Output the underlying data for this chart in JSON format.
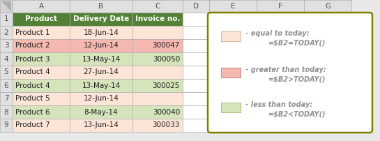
{
  "col_headers": [
    "A",
    "B",
    "C",
    "D",
    "E",
    "F",
    "G"
  ],
  "row_headers": [
    "1",
    "2",
    "3",
    "4",
    "5",
    "6",
    "7",
    "8",
    "9"
  ],
  "table_data": [
    [
      "Product",
      "Delivery Date",
      "Invoice no.",
      "",
      "",
      "",
      ""
    ],
    [
      "Product 1",
      "18-Jun-14",
      "",
      "",
      "",
      "",
      ""
    ],
    [
      "Product 2",
      "12-Jun-14",
      "300047",
      "",
      "",
      "",
      ""
    ],
    [
      "Product 3",
      "13-May-14",
      "300050",
      "",
      "",
      "",
      ""
    ],
    [
      "Product 4",
      "27-Jun-14",
      "",
      "",
      "",
      "",
      ""
    ],
    [
      "Product 4",
      "13-May-14",
      "300025",
      "",
      "",
      "",
      ""
    ],
    [
      "Product 5",
      "12-Jun-14",
      "",
      "",
      "",
      "",
      ""
    ],
    [
      "Product 6",
      "8-May-14",
      "300040",
      "",
      "",
      "",
      ""
    ],
    [
      "Product 7",
      "13-Jun-14",
      "300033",
      "",
      "",
      "",
      ""
    ]
  ],
  "row_colors": [
    [
      "#538135",
      "#538135",
      "#538135"
    ],
    [
      "#fce4d6",
      "#fce4d6",
      "#fce4d6"
    ],
    [
      "#f4b8b0",
      "#f4b8b0",
      "#f4b8b0"
    ],
    [
      "#d6e4bc",
      "#d6e4bc",
      "#d6e4bc"
    ],
    [
      "#fce4d6",
      "#fce4d6",
      "#fce4d6"
    ],
    [
      "#d6e4bc",
      "#d6e4bc",
      "#d6e4bc"
    ],
    [
      "#fce4d6",
      "#fce4d6",
      "#fce4d6"
    ],
    [
      "#d6e4bc",
      "#d6e4bc",
      "#d6e4bc"
    ],
    [
      "#fce4d6",
      "#fce4d6",
      "#fce4d6"
    ]
  ],
  "header_text_color": "#ffffff",
  "header_bg": "#538135",
  "cell_text_color": "#1f1f1f",
  "grid_color": "#b0b0b0",
  "bg_color": "#ffffff",
  "legend_border_color": "#7f7f00",
  "legend_fill": "#ffffff",
  "legend_items": [
    {
      "color": "#fce4d6",
      "swatch_border": "#d4b8a8",
      "label1": " - equal to today:",
      "label2": "=$B2=TODAY()"
    },
    {
      "color": "#f4b8b0",
      "swatch_border": "#c8908a",
      "label1": " - greater than today:",
      "label2": "=$B2>TODAY()"
    },
    {
      "color": "#d6e4bc",
      "swatch_border": "#a8c080",
      "label1": " - less than today:",
      "label2": "=$B2<TODAY()"
    }
  ],
  "fig_bg": "#e8e8e8",
  "corner_bg": "#d4d4d4",
  "col_header_bg": "#e0e0e0",
  "row_header_bg": "#e0e0e0"
}
